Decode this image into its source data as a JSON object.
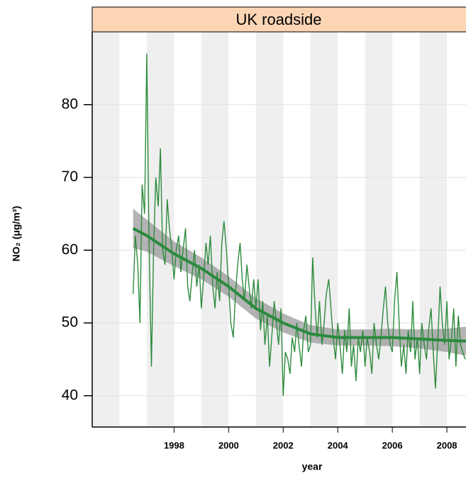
{
  "chart_data": {
    "type": "line",
    "title": "UK roadside",
    "xlabel": "year",
    "ylabel": "NO₂ (μg/m³)",
    "xlim": [
      1995,
      2008.7
    ],
    "ylim": [
      35.7,
      90
    ],
    "xticks": [
      1998,
      2000,
      2002,
      2004,
      2006,
      2008
    ],
    "yticks": [
      40,
      50,
      60,
      70,
      80
    ],
    "grid": true,
    "color": "#2e8b3e",
    "x": [
      1996.5,
      1996.58,
      1996.67,
      1996.75,
      1996.83,
      1996.92,
      1997,
      1997.08,
      1997.17,
      1997.25,
      1997.33,
      1997.42,
      1997.5,
      1997.58,
      1997.67,
      1997.75,
      1997.83,
      1997.92,
      1998,
      1998.08,
      1998.17,
      1998.25,
      1998.33,
      1998.42,
      1998.5,
      1998.58,
      1998.67,
      1998.75,
      1998.83,
      1998.92,
      1999,
      1999.08,
      1999.17,
      1999.25,
      1999.33,
      1999.42,
      1999.5,
      1999.58,
      1999.67,
      1999.75,
      1999.83,
      1999.92,
      2000,
      2000.08,
      2000.17,
      2000.25,
      2000.33,
      2000.42,
      2000.5,
      2000.58,
      2000.67,
      2000.75,
      2000.83,
      2000.92,
      2001,
      2001.08,
      2001.17,
      2001.25,
      2001.33,
      2001.42,
      2001.5,
      2001.58,
      2001.67,
      2001.75,
      2001.83,
      2001.92,
      2002,
      2002.08,
      2002.17,
      2002.25,
      2002.33,
      2002.42,
      2002.5,
      2002.58,
      2002.67,
      2002.75,
      2002.83,
      2002.92,
      2003,
      2003.08,
      2003.17,
      2003.25,
      2003.33,
      2003.42,
      2003.5,
      2003.58,
      2003.67,
      2003.75,
      2003.83,
      2003.92,
      2004,
      2004.08,
      2004.17,
      2004.25,
      2004.33,
      2004.42,
      2004.5,
      2004.58,
      2004.67,
      2004.75,
      2004.83,
      2004.92,
      2005,
      2005.08,
      2005.17,
      2005.25,
      2005.33,
      2005.42,
      2005.5,
      2005.58,
      2005.67,
      2005.75,
      2005.83,
      2005.92,
      2006,
      2006.08,
      2006.17,
      2006.25,
      2006.33,
      2006.42,
      2006.5,
      2006.58,
      2006.67,
      2006.75,
      2006.83,
      2006.92,
      2007,
      2007.08,
      2007.17,
      2007.25,
      2007.33,
      2007.42,
      2007.5,
      2007.58,
      2007.67,
      2007.75,
      2007.83,
      2007.92,
      2008,
      2008.08,
      2008.17,
      2008.25,
      2008.33,
      2008.42,
      2008.5,
      2008.58,
      2008.67
    ],
    "values": [
      54,
      62,
      58,
      50,
      69,
      65,
      87,
      62,
      44,
      60,
      70,
      66,
      74,
      60,
      58,
      67,
      63,
      60,
      56,
      60,
      62,
      57,
      60,
      63,
      55,
      53,
      57,
      60,
      55,
      58,
      52,
      56,
      61,
      58,
      62,
      55,
      52,
      57,
      53,
      61,
      64,
      60,
      55,
      50,
      48,
      54,
      58,
      61,
      56,
      53,
      58,
      55,
      52,
      56,
      52,
      56,
      49,
      53,
      47,
      51,
      44,
      48,
      53,
      50,
      47,
      52,
      40,
      46,
      45,
      43,
      48,
      46,
      50,
      47,
      44,
      49,
      51,
      46,
      47,
      59,
      52,
      48,
      53,
      47,
      50,
      54,
      56,
      52,
      48,
      45,
      50,
      47,
      43,
      49,
      46,
      52,
      44,
      47,
      42,
      48,
      46,
      49,
      44,
      48,
      46,
      43,
      50,
      47,
      45,
      48,
      52,
      55,
      50,
      47,
      46,
      53,
      57,
      50,
      44,
      47,
      43,
      49,
      46,
      53,
      45,
      48,
      43,
      50,
      47,
      45,
      49,
      52,
      46,
      41,
      48,
      55,
      50,
      47,
      53,
      45,
      48,
      52,
      44,
      51,
      47,
      46,
      45
    ],
    "trend": {
      "color": "#2a8a3e",
      "band_color": "#8c8c8c",
      "x": [
        1996.5,
        1997,
        1998,
        1999,
        2000,
        2001,
        2002,
        2003,
        2004,
        2005,
        2006,
        2007,
        2008,
        2008.7
      ],
      "values": [
        63,
        62,
        59.5,
        57.5,
        55,
        52,
        50,
        48.5,
        48,
        48,
        48,
        47.8,
        47.6,
        47.5
      ],
      "lower": [
        60.3,
        59.8,
        57.8,
        56,
        53.6,
        50.6,
        48.7,
        47.3,
        46.9,
        46.9,
        46.8,
        46.5,
        46,
        45.5
      ],
      "upper": [
        65.7,
        64.2,
        61.2,
        59,
        56.4,
        53.4,
        51.3,
        49.7,
        49.1,
        49.1,
        49.2,
        49.1,
        49.2,
        49.5
      ]
    }
  }
}
